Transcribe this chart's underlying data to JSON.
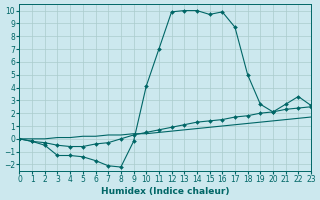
{
  "xlabel": "Humidex (Indice chaleur)",
  "bg_color": "#cce8ee",
  "line_color": "#006666",
  "grid_color": "#aacccc",
  "xlim": [
    0,
    23
  ],
  "ylim": [
    -2.5,
    10.5
  ],
  "xticks": [
    0,
    1,
    2,
    3,
    4,
    5,
    6,
    7,
    8,
    9,
    10,
    11,
    12,
    13,
    14,
    15,
    16,
    17,
    18,
    19,
    20,
    21,
    22,
    23
  ],
  "yticks": [
    -2,
    -1,
    0,
    1,
    2,
    3,
    4,
    5,
    6,
    7,
    8,
    9,
    10
  ],
  "series": [
    {
      "y": [
        0.0,
        -0.2,
        -0.5,
        -1.3,
        -1.3,
        -1.4,
        -1.7,
        -2.1,
        -2.2,
        -0.2,
        4.1,
        7.0,
        9.9,
        10.0,
        10.0,
        9.7,
        9.9,
        8.7,
        5.0,
        2.7,
        2.1,
        2.7,
        3.3,
        2.6
      ],
      "marker": "D",
      "markersize": 2.0,
      "linewidth": 0.8
    },
    {
      "y": [
        0.0,
        -0.2,
        -0.3,
        -0.5,
        -0.6,
        -0.6,
        -0.4,
        -0.3,
        0.0,
        0.3,
        0.5,
        0.7,
        0.9,
        1.1,
        1.3,
        1.4,
        1.5,
        1.7,
        1.8,
        2.0,
        2.1,
        2.3,
        2.4,
        2.5
      ],
      "marker": "D",
      "markersize": 2.0,
      "linewidth": 0.8
    },
    {
      "y": [
        0.0,
        0.0,
        0.0,
        0.1,
        0.1,
        0.2,
        0.2,
        0.3,
        0.3,
        0.4,
        0.4,
        0.5,
        0.6,
        0.7,
        0.8,
        0.9,
        1.0,
        1.1,
        1.2,
        1.3,
        1.4,
        1.5,
        1.6,
        1.7
      ],
      "marker": null,
      "markersize": 0,
      "linewidth": 0.8
    }
  ]
}
